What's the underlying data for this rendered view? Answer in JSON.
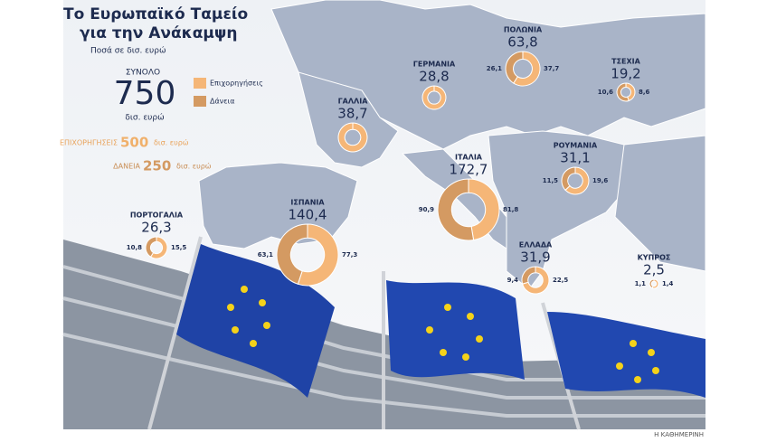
{
  "header": {
    "title": "Το Ευρωπαϊκό Ταμείο",
    "title2": "για την Ανάκαμψη",
    "subtitle": "Ποσά σε δισ. ευρώ"
  },
  "summary": {
    "total_label": "ΣΥΝΟΛΟ",
    "total": 750,
    "total_unit": "δισ. ευρώ",
    "grants_label": "ΕΠΙΧΟΡΗΓΗΣΕΙΣ",
    "grants": 500,
    "grants_unit": "δισ. ευρώ",
    "loans_label": "ΔΑΝΕΙΑ",
    "loans": 250,
    "loans_unit": "δισ. ευρώ"
  },
  "legend": [
    {
      "name": "Επιχορηγήσεις",
      "color": "#f5b677"
    },
    {
      "name": "Δάνεια",
      "color": "#d49a62"
    }
  ],
  "chart_data": [
    {
      "type": "donut",
      "title": "ΠΟΛΩΝΙΑ",
      "total": {
        "value": 63.8,
        "label": "63,8"
      },
      "values": [
        37.7,
        26.1
      ],
      "value_labels": [
        "37,7",
        "26,1"
      ]
    },
    {
      "type": "donut",
      "title": "ΓΕΡΜΑΝΙΑ",
      "total": {
        "value": 28.8,
        "label": "28,8"
      },
      "values": [
        28.8
      ]
    },
    {
      "type": "donut",
      "title": "ΤΣΕΧΙΑ",
      "total": {
        "value": 19.2,
        "label": "19,2"
      },
      "values": [
        8.6,
        10.6
      ],
      "value_labels": [
        "8,6",
        "10,6"
      ]
    },
    {
      "type": "donut",
      "title": "ΓΑΛΛΙΑ",
      "total": {
        "value": 38.7,
        "label": "38,7"
      },
      "values": [
        38.7
      ]
    },
    {
      "type": "donut",
      "title": "ΡΟΥΜΑΝΙΑ",
      "total": {
        "value": 31.1,
        "label": "31,1"
      },
      "values": [
        19.6,
        11.5
      ],
      "value_labels": [
        "19,6",
        "11,5"
      ]
    },
    {
      "type": "donut",
      "title": "ΙΤΑΛΙΑ",
      "total": {
        "value": 172.7,
        "label": "172,7"
      },
      "values": [
        81.8,
        90.9
      ],
      "value_labels": [
        "81,8",
        "90,9"
      ]
    },
    {
      "type": "donut",
      "title": "ΙΣΠΑΝΙΑ",
      "total": {
        "value": 140.4,
        "label": "140,4"
      },
      "values": [
        77.3,
        63.1
      ],
      "value_labels": [
        "77,3",
        "63,1"
      ]
    },
    {
      "type": "donut",
      "title": "ΠΟΡΤΟΓΑΛΙΑ",
      "total": {
        "value": 26.3,
        "label": "26,3"
      },
      "values": [
        15.5,
        10.8
      ],
      "value_labels": [
        "15,5",
        "10,8"
      ]
    },
    {
      "type": "donut",
      "title": "ΕΛΛΑΔΑ",
      "total": {
        "value": 31.9,
        "label": "31,9"
      },
      "values": [
        22.5,
        9.4
      ],
      "value_labels": [
        "22,5",
        "9,4"
      ]
    },
    {
      "type": "donut",
      "title": "ΚΥΠΡΟΣ",
      "total": {
        "value": 2.5,
        "label": "2,5"
      },
      "values": [
        1.4,
        1.1
      ],
      "value_labels": [
        "1,4",
        "1,1"
      ]
    }
  ],
  "credit": "Η ΚΑΘΗΜΕΡΙΝΗ"
}
